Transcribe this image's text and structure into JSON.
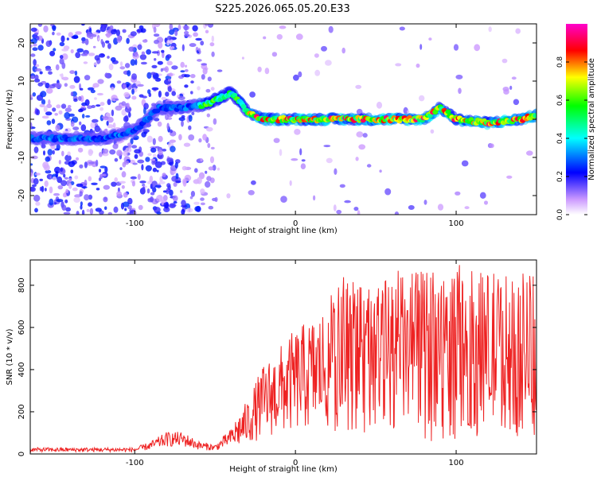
{
  "title": "S225.2026.065.05.20.E33",
  "chart_data": [
    {
      "type": "heatmap",
      "xlabel": "Height of straight line (km)",
      "ylabel": "Frequency (Hz)",
      "xlim": [
        -165,
        150
      ],
      "ylim": [
        -25,
        25
      ],
      "xticks": [
        -100,
        0,
        100
      ],
      "yticks": [
        -20,
        -10,
        0,
        10,
        20
      ],
      "colorbar": {
        "label": "Normalized spectral amplitude",
        "range": [
          0,
          1
        ],
        "ticks": [
          0.0,
          0.2,
          0.4,
          0.6,
          0.8
        ],
        "colors": [
          "#ffffff",
          "#7700ff",
          "#0000ff",
          "#00ffff",
          "#00ff00",
          "#ffff00",
          "#ff0000",
          "#ff00cc"
        ]
      },
      "ridge": {
        "x": [
          -165,
          -140,
          -120,
          -100,
          -85,
          -70,
          -55,
          -45,
          -40,
          -30,
          -20,
          -10,
          0,
          20,
          40,
          60,
          80,
          90,
          100,
          120,
          140,
          150
        ],
        "y": [
          -5,
          -5,
          -5,
          -3,
          3,
          3,
          4,
          6,
          7,
          2,
          0,
          0,
          0,
          0,
          0,
          0,
          0,
          3,
          0,
          -1,
          0,
          1
        ]
      }
    },
    {
      "type": "line",
      "xlabel": "Height of straight line (km)",
      "ylabel": "SNR (10 * v/v)",
      "xlim": [
        -165,
        150
      ],
      "ylim": [
        0,
        920
      ],
      "xticks": [
        -100,
        0,
        100
      ],
      "yticks": [
        0,
        200,
        400,
        600,
        800
      ],
      "color": "#ee2222",
      "envelope": {
        "x": [
          -165,
          -100,
          -90,
          -80,
          -70,
          -60,
          -50,
          -40,
          -30,
          -20,
          -10,
          0,
          10,
          20,
          40,
          60,
          80,
          100,
          120,
          140,
          150
        ],
        "y": [
          20,
          20,
          40,
          70,
          70,
          40,
          30,
          80,
          150,
          250,
          300,
          350,
          380,
          420,
          460,
          480,
          500,
          500,
          500,
          490,
          500
        ]
      }
    }
  ]
}
